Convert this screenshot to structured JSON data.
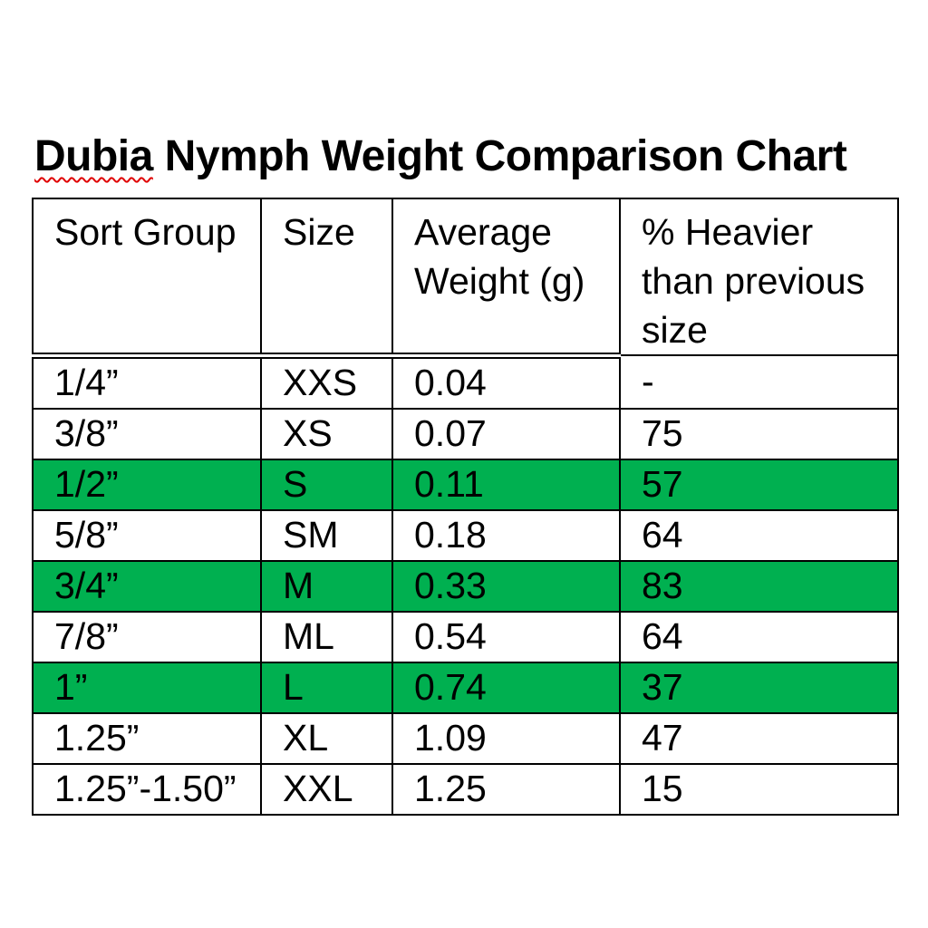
{
  "title": {
    "misspelled_word": "Dubia",
    "rest": " Nymph Weight Comparison Chart"
  },
  "colors": {
    "highlight_green": "#00B050",
    "spellcheck_red": "#E00000",
    "border_black": "#000000",
    "background": "#FFFFFF"
  },
  "table": {
    "columns": [
      "Sort Group",
      "Size",
      "Average Weight (g)",
      "% Heavier than previous size"
    ],
    "rows": [
      {
        "sort_group": "1/4”",
        "size": "XXS",
        "avg_weight": "0.04",
        "pct_heavier": "-",
        "highlighted": false
      },
      {
        "sort_group": "3/8”",
        "size": "XS",
        "avg_weight": "0.07",
        "pct_heavier": "75",
        "highlighted": false
      },
      {
        "sort_group": "1/2”",
        "size": "S",
        "avg_weight": "0.11",
        "pct_heavier": "57",
        "highlighted": true
      },
      {
        "sort_group": "5/8”",
        "size": "SM",
        "avg_weight": "0.18",
        "pct_heavier": "64",
        "highlighted": false
      },
      {
        "sort_group": "3/4”",
        "size": "M",
        "avg_weight": "0.33",
        "pct_heavier": "83",
        "highlighted": true
      },
      {
        "sort_group": "7/8”",
        "size": "ML",
        "avg_weight": "0.54",
        "pct_heavier": "64",
        "highlighted": false
      },
      {
        "sort_group": "1”",
        "size": "L",
        "avg_weight": "0.74",
        "pct_heavier": "37",
        "highlighted": true
      },
      {
        "sort_group": "1.25”",
        "size": "XL",
        "avg_weight": "1.09",
        "pct_heavier": "47",
        "highlighted": false
      },
      {
        "sort_group": "1.25”-1.50”",
        "size": "XXL",
        "avg_weight": "1.25",
        "pct_heavier": "15",
        "highlighted": false
      }
    ]
  }
}
